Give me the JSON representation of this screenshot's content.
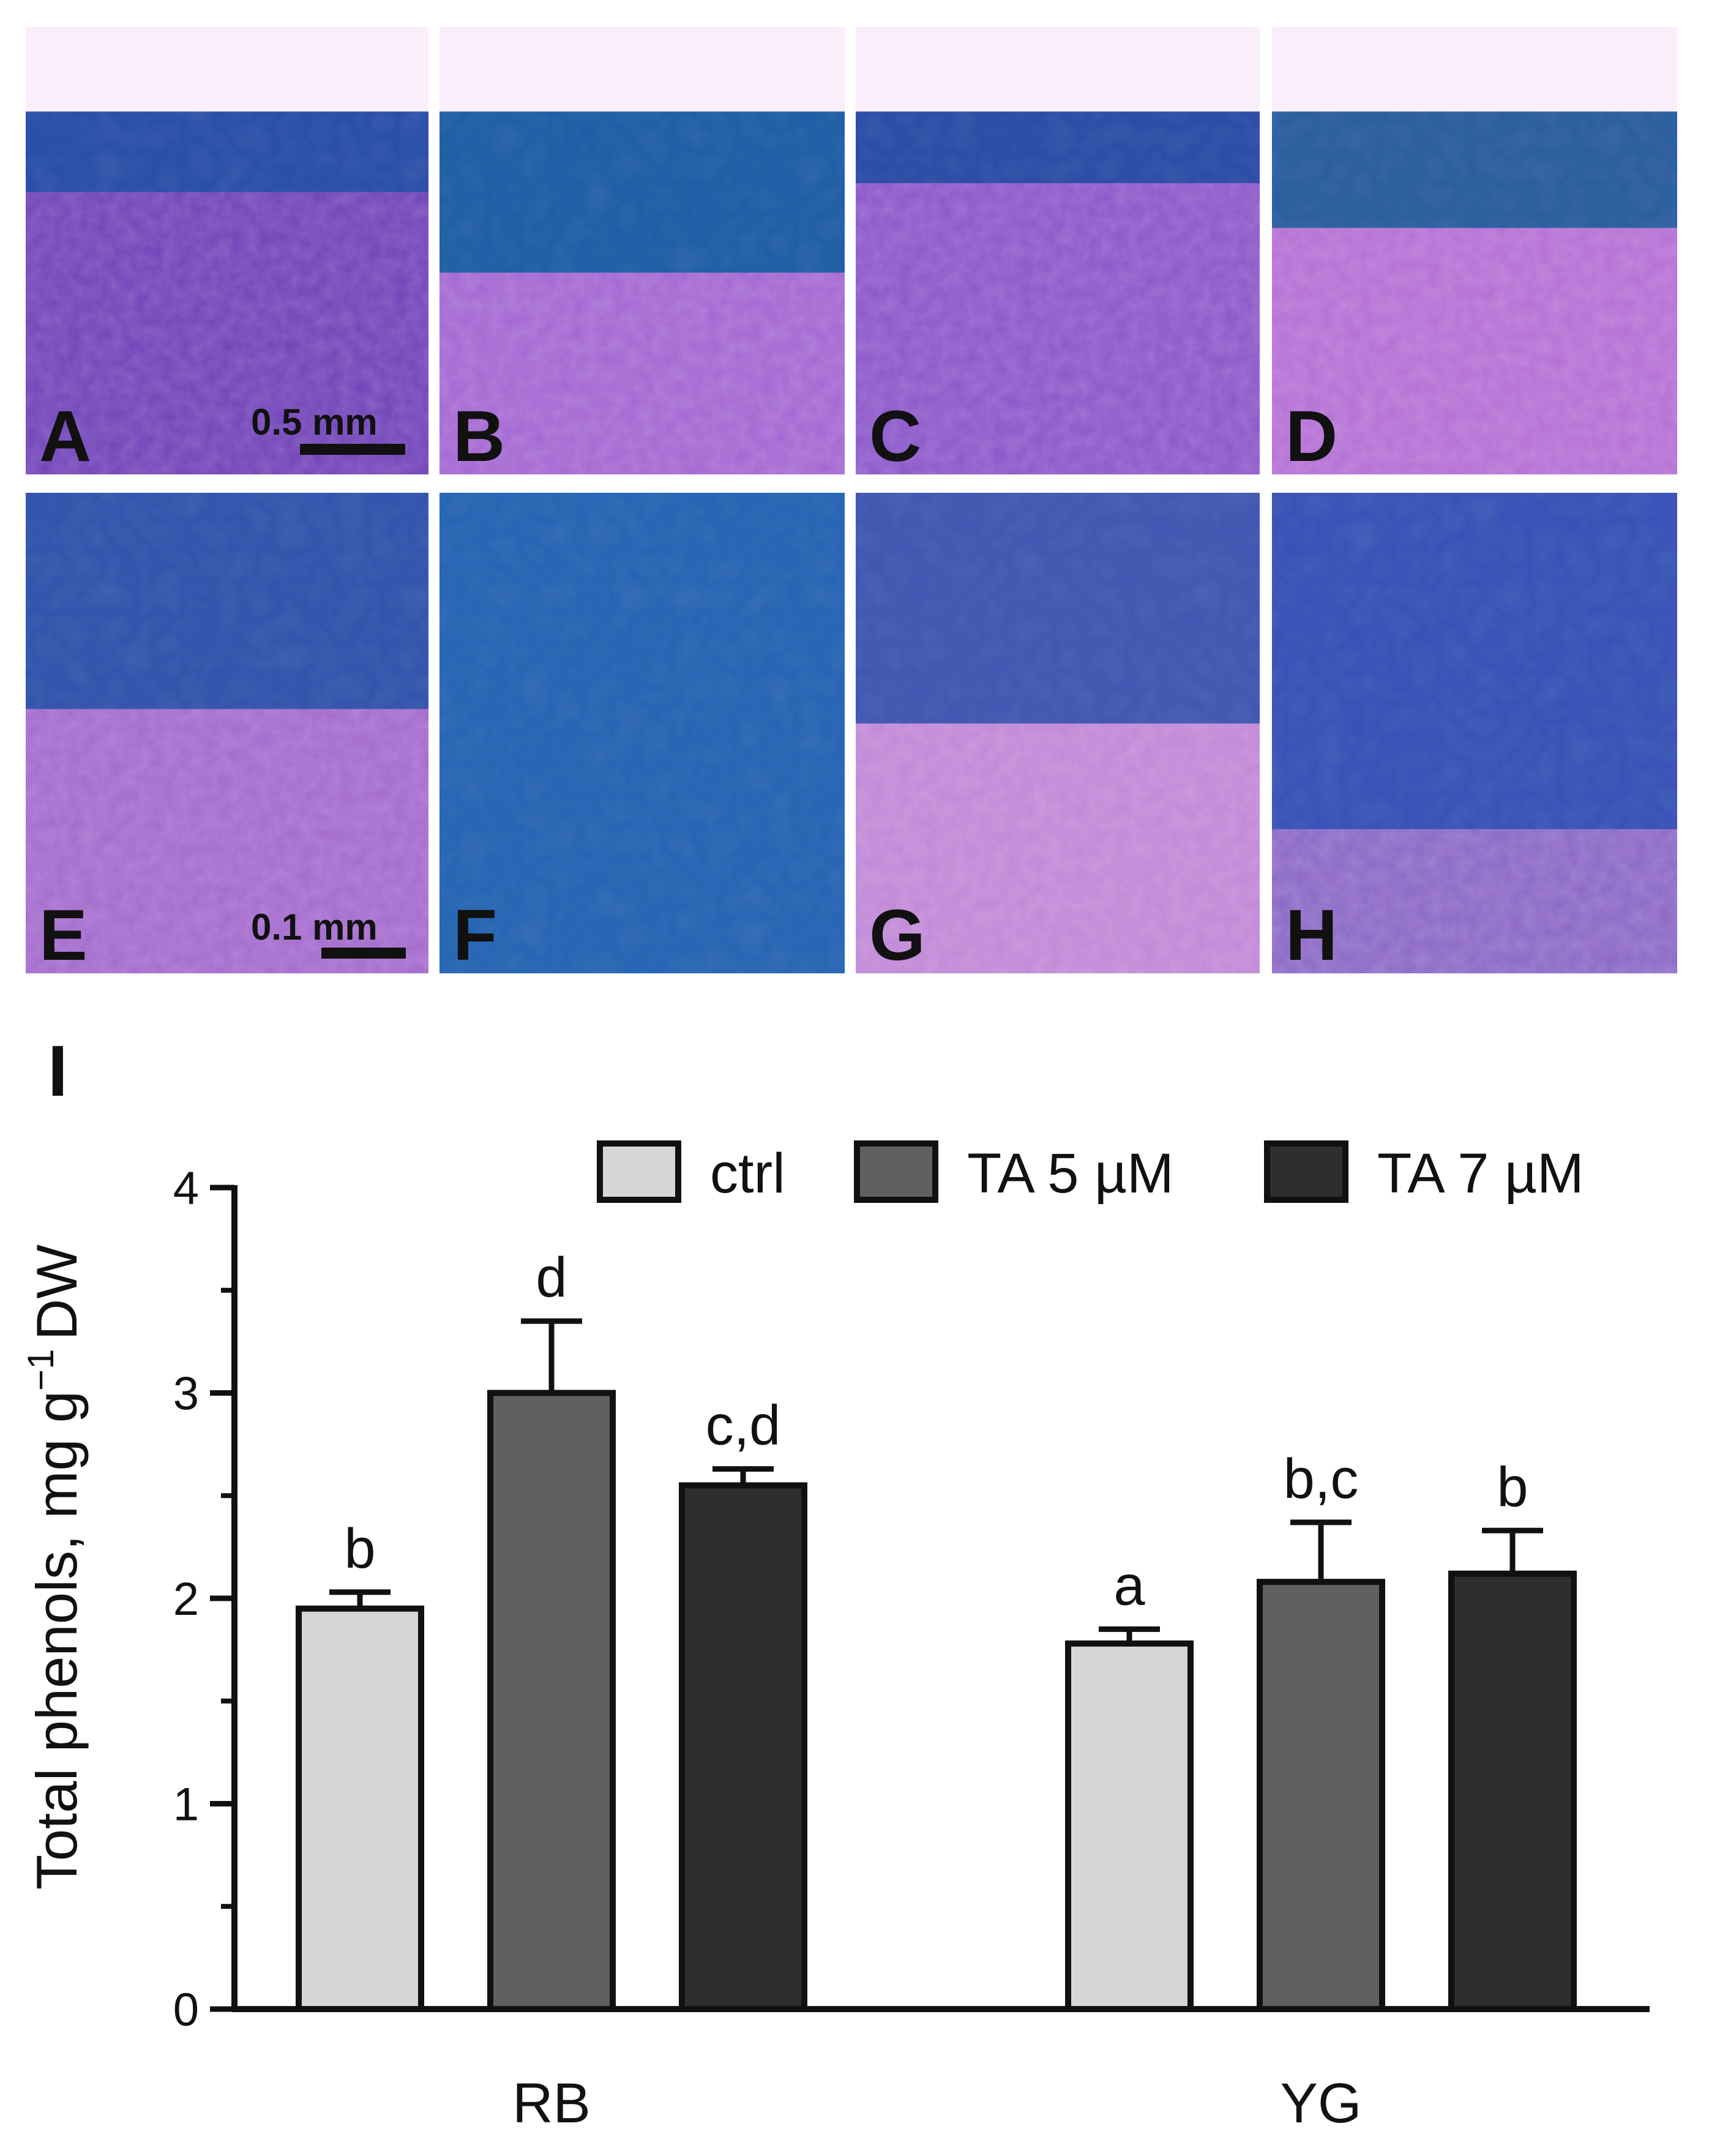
{
  "micrographs": {
    "panels": [
      {
        "letter": "A",
        "tone": "#6f43b8",
        "band": "#2b4fa8",
        "band_depth": 0.18
      },
      {
        "letter": "B",
        "tone": "#a266d2",
        "band": "#1f5fa6",
        "band_depth": 0.36
      },
      {
        "letter": "C",
        "tone": "#8a57c9",
        "band": "#2d4ca6",
        "band_depth": 0.16
      },
      {
        "letter": "D",
        "tone": "#b46fd4",
        "band": "#2c5f9e",
        "band_depth": 0.26
      },
      {
        "letter": "E",
        "tone": "#a36acd",
        "band": "#1f4fa6",
        "band_depth": 0.45
      },
      {
        "letter": "F",
        "tone": "#4d86c4",
        "band": "#1d5fb0",
        "band_depth": 1.0
      },
      {
        "letter": "G",
        "tone": "#c087d6",
        "band": "#2a4eaa",
        "band_depth": 0.48
      },
      {
        "letter": "H",
        "tone": "#8a68c6",
        "band": "#2a4cb4",
        "band_depth": 0.7
      }
    ],
    "scale_bars": [
      {
        "panel": "A",
        "label": "0.5 mm"
      },
      {
        "panel": "E",
        "label": "0.1 mm"
      }
    ]
  },
  "chart_label": "I",
  "chart_data": {
    "type": "bar",
    "categories": [
      "RB",
      "YG"
    ],
    "series": [
      {
        "name": "ctrl",
        "color": "#d6d6d6",
        "values": [
          1.95,
          1.78
        ],
        "errors": [
          0.08,
          0.07
        ],
        "labels": [
          "b",
          "a"
        ]
      },
      {
        "name": "TA 5 µM",
        "color": "#606060",
        "values": [
          3.0,
          2.08
        ],
        "errors": [
          0.35,
          0.29
        ],
        "labels": [
          "d",
          "b,c"
        ]
      },
      {
        "name": "TA 7 µM",
        "color": "#2e2e2e",
        "values": [
          2.55,
          2.12
        ],
        "errors": [
          0.08,
          0.21
        ],
        "labels": [
          "c,d",
          "b"
        ]
      }
    ],
    "ylabel": "Total phenols, mg g",
    "ylabel_sup": "−1",
    "ylabel_unit": "DW",
    "ylim": [
      0,
      4
    ],
    "yticks": [
      "0",
      "1",
      "2",
      "3",
      "4"
    ],
    "legend_position": "top-right",
    "grid": false
  }
}
